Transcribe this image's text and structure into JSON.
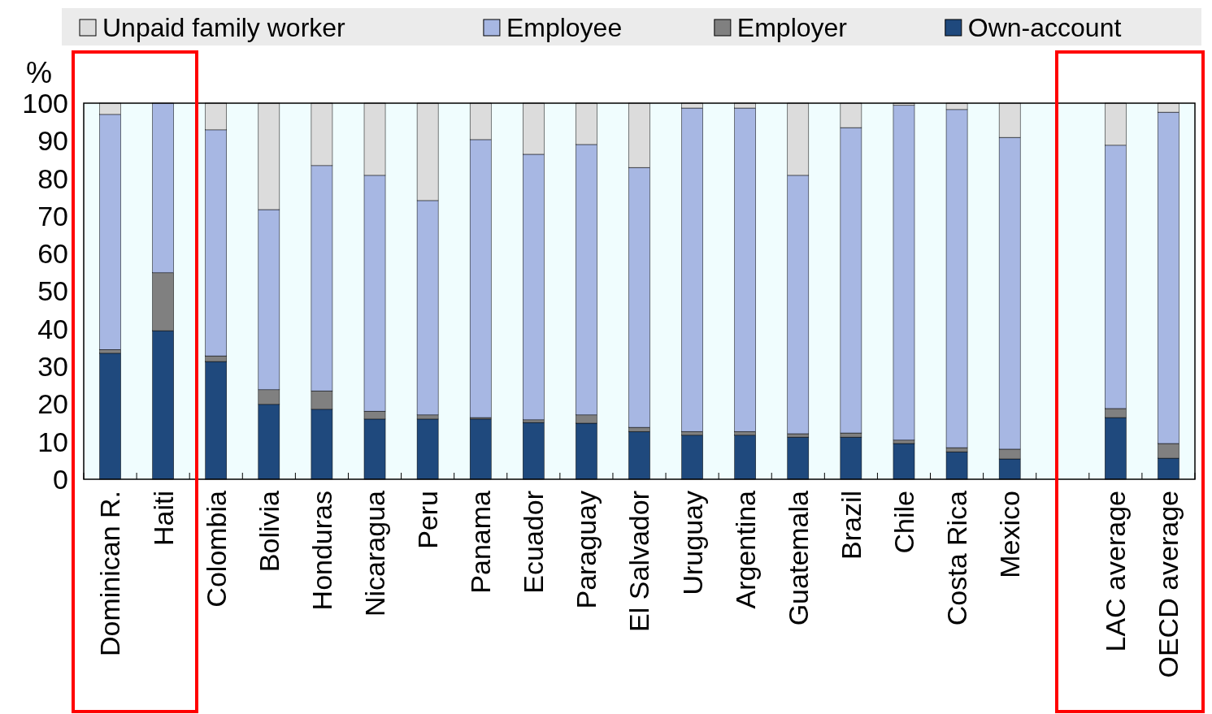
{
  "chart_data": {
    "type": "bar",
    "stacked": true,
    "ylabel": "%",
    "legend": "top",
    "grid": false,
    "categories": [
      "Dominican R.",
      "Haiti",
      "Colombia",
      "Bolivia",
      "Honduras",
      "Nicaragua",
      "Peru",
      "Panama",
      "Ecuador",
      "Paraguay",
      "El Salvador",
      "Uruguay",
      "Argentina",
      "Guatemala",
      "Brazil",
      "Chile",
      "Costa Rica",
      "Mexico",
      null,
      "LAC average",
      "OECD average"
    ],
    "ylim": [
      0,
      100
    ],
    "yticks": [
      0,
      10,
      20,
      30,
      40,
      50,
      60,
      70,
      80,
      90,
      100
    ],
    "series": [
      {
        "name": "Own-account",
        "color": "#1f497d",
        "values": [
          33.5,
          39.5,
          31.3,
          19.9,
          18.6,
          16,
          16,
          16,
          15.1,
          14.9,
          12.7,
          11.7,
          11.7,
          11.2,
          11.2,
          9.5,
          7.3,
          5.4,
          null,
          16.4,
          5.6
        ]
      },
      {
        "name": "Employer",
        "color": "#808080",
        "values": [
          1,
          15.4,
          1.5,
          3.9,
          4.9,
          2.1,
          1.1,
          0.4,
          0.7,
          2.2,
          1.1,
          1,
          1,
          0.9,
          1.1,
          0.9,
          1.1,
          2.6,
          null,
          2.4,
          3.9
        ]
      },
      {
        "name": "Employee",
        "color": "#a7b7e3",
        "values": [
          62.5,
          45.1,
          60.1,
          47.9,
          59.9,
          62.7,
          57,
          73.9,
          70.6,
          71.9,
          69.1,
          86,
          86,
          68.7,
          81.2,
          89,
          89.9,
          82.9,
          null,
          70,
          88.1
        ]
      },
      {
        "name": "Unpaid family worker",
        "color": "#dcdcdc",
        "values": [
          3,
          0,
          7.1,
          28.3,
          16.6,
          19.2,
          25.9,
          9.7,
          13.6,
          11,
          17.1,
          1.3,
          1.3,
          19.2,
          6.5,
          0.6,
          1.7,
          9.1,
          null,
          11.2,
          2.4
        ]
      }
    ]
  }
}
